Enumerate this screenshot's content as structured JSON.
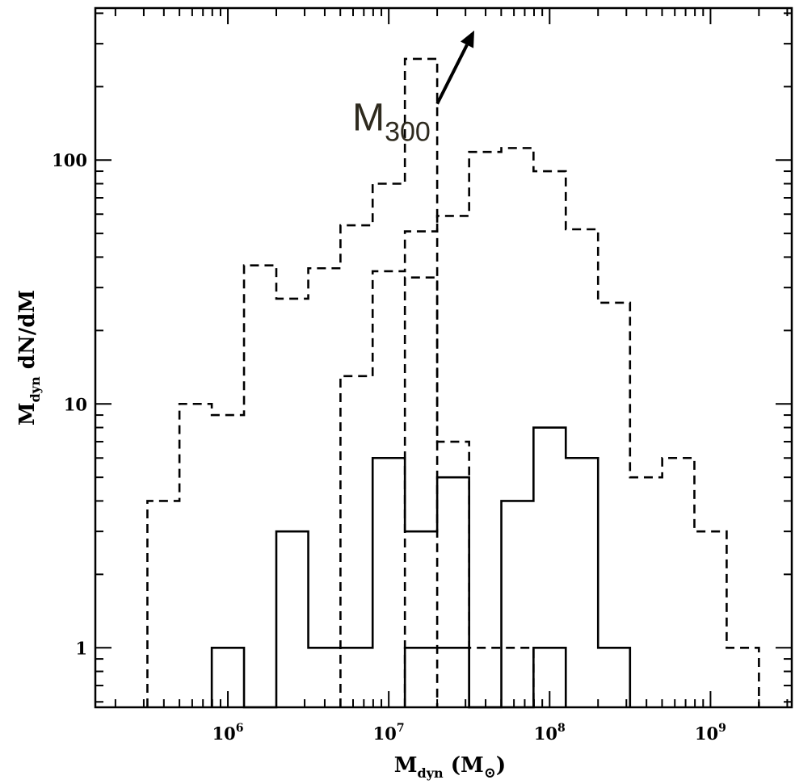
{
  "chart_data": {
    "type": "histogram",
    "xscale": "log",
    "yscale": "log",
    "xlim": [
      150000,
      3200000000
    ],
    "ylim": [
      0.57,
      420
    ],
    "grid": false,
    "legend": "none",
    "xlabel": {
      "main": "M",
      "sub": "dyn",
      "unit_open": " (M",
      "unit_sub": "⊙",
      "unit_close": ")"
    },
    "ylabel": {
      "main": "M",
      "sub": "dyn",
      "rest": "  dN/dM"
    },
    "x_tick_labels": [
      {
        "base": "10",
        "exp": "6",
        "value": 1000000
      },
      {
        "base": "10",
        "exp": "7",
        "value": 10000000
      },
      {
        "base": "10",
        "exp": "8",
        "value": 100000000
      },
      {
        "base": "10",
        "exp": "9",
        "value": 1000000000
      }
    ],
    "y_tick_labels": [
      {
        "label": "1",
        "value": 1
      },
      {
        "label": "10",
        "value": 10
      },
      {
        "label": "100",
        "value": 100
      }
    ],
    "series": [
      {
        "style": "dashed",
        "bin_edges": [
          316000,
          500000,
          794000,
          1260000,
          2000000,
          3160000,
          5010000,
          7940000,
          12600000,
          20000000
        ],
        "values": [
          4,
          10,
          9,
          37,
          27,
          36,
          54,
          80,
          260
        ]
      },
      {
        "style": "dashed",
        "bin_edges": [
          5010000,
          7940000,
          12600000,
          20000000,
          31600000,
          50100000,
          79400000,
          126000000,
          200000000,
          316000000,
          501000000,
          794000000,
          1260000000,
          2000000000
        ],
        "values": [
          13,
          35,
          51,
          59,
          108,
          112,
          90,
          52,
          26,
          5,
          6,
          3,
          1
        ]
      },
      {
        "style": "dashed",
        "bin_edges": [
          12600000,
          20000000,
          31600000,
          50100000,
          79400000
        ],
        "values": [
          33,
          7,
          1,
          1
        ]
      },
      {
        "style": "solid",
        "bin_edges": [
          794000,
          1260000,
          2000000,
          3160000,
          5010000,
          7940000,
          12600000,
          20000000,
          31600000,
          50100000,
          79400000,
          126000000,
          200000000,
          316000000
        ],
        "values": [
          1,
          0,
          3,
          1,
          1,
          6,
          3,
          5,
          0,
          4,
          8,
          6,
          1
        ]
      },
      {
        "style": "solid",
        "bin_edges": [
          12600000,
          20000000,
          31600000,
          50100000,
          79400000,
          126000000
        ],
        "values": [
          1,
          1,
          0,
          0,
          1
        ]
      }
    ],
    "annotations": [
      {
        "text": "M",
        "sub": "300",
        "arrow_from": [
          20000000,
          170
        ],
        "arrow_to": [
          34000000,
          340
        ]
      }
    ]
  }
}
